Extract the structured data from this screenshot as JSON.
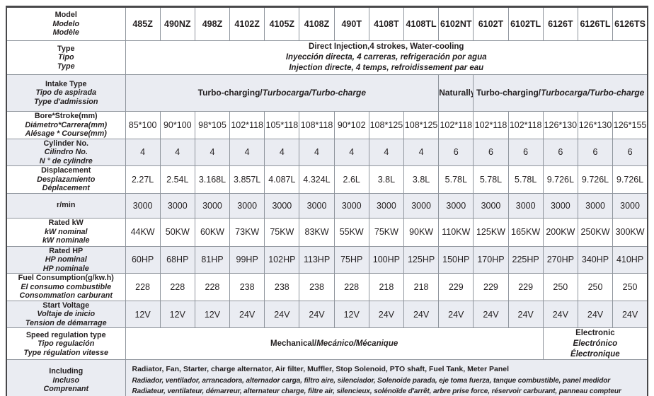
{
  "table": {
    "model_label": [
      "Model",
      "Modelo",
      "Modèle"
    ],
    "models": [
      "485Z",
      "490NZ",
      "498Z",
      "4102Z",
      "4105Z",
      "4108Z",
      "490T",
      "4108T",
      "4108TL",
      "6102NT",
      "6102T",
      "6102TL",
      "6126T",
      "6126TL",
      "6126TS"
    ],
    "rows": [
      {
        "name": "type",
        "shaded": false,
        "label": [
          "Type",
          "Tipo",
          "Type"
        ],
        "cells": [
          {
            "span": 15,
            "lines": [
              "Direct Injection,4 strokes, Water-cooling",
              "Inyección directa, 4 carreras, refrigeración por agua",
              "Injection directe, 4 temps, refroidissement par eau"
            ]
          }
        ]
      },
      {
        "name": "intake",
        "shaded": true,
        "label": [
          "Intake Type",
          "Tipo de aspirada",
          "Type d'admission"
        ],
        "cells": [
          {
            "span": 9,
            "lines": [
              "Turbo-charging/Turbocarga/Turbo-charge"
            ]
          },
          {
            "span": 1,
            "lines": [
              "Naturally"
            ]
          },
          {
            "span": 5,
            "lines": [
              "Turbo-charging/Turbocarga/Turbo-charge"
            ]
          }
        ]
      },
      {
        "name": "bore-stroke",
        "shaded": false,
        "label": [
          "Bore*Stroke(mm)",
          "Diámetro*Carrera(mm)",
          "Alésage * Course(mm)"
        ],
        "values": [
          "85*100",
          "90*100",
          "98*105",
          "102*118",
          "105*118",
          "108*118",
          "90*102",
          "108*125",
          "108*125",
          "102*118",
          "102*118",
          "102*118",
          "126*130",
          "126*130",
          "126*155"
        ]
      },
      {
        "name": "cylinder-no",
        "shaded": true,
        "label": [
          "Cylinder No.",
          "Cilindro No.",
          "N ° de cylindre"
        ],
        "values": [
          "4",
          "4",
          "4",
          "4",
          "4",
          "4",
          "4",
          "4",
          "4",
          "6",
          "6",
          "6",
          "6",
          "6",
          "6"
        ]
      },
      {
        "name": "displacement",
        "shaded": false,
        "label": [
          "Displacement",
          "Desplazamiento",
          "Déplacement"
        ],
        "values": [
          "2.27L",
          "2.54L",
          "3.168L",
          "3.857L",
          "4.087L",
          "4.324L",
          "2.6L",
          "3.8L",
          "3.8L",
          "5.78L",
          "5.78L",
          "5.78L",
          "9.726L",
          "9.726L",
          "9.726L"
        ]
      },
      {
        "name": "rpm",
        "shaded": true,
        "label": [
          "r/min"
        ],
        "values": [
          "3000",
          "3000",
          "3000",
          "3000",
          "3000",
          "3000",
          "3000",
          "3000",
          "3000",
          "3000",
          "3000",
          "3000",
          "3000",
          "3000",
          "3000"
        ]
      },
      {
        "name": "rated-kw",
        "shaded": false,
        "label": [
          "Rated kW",
          "kW nominal",
          "kW nominale"
        ],
        "values": [
          "44KW",
          "50KW",
          "60KW",
          "73KW",
          "75KW",
          "83KW",
          "55KW",
          "75KW",
          "90KW",
          "110KW",
          "125KW",
          "165KW",
          "200KW",
          "250KW",
          "300KW"
        ]
      },
      {
        "name": "rated-hp",
        "shaded": true,
        "label": [
          "Rated HP",
          "HP nominal",
          "HP nominale"
        ],
        "values": [
          "60HP",
          "68HP",
          "81HP",
          "99HP",
          "102HP",
          "113HP",
          "75HP",
          "100HP",
          "125HP",
          "150HP",
          "170HP",
          "225HP",
          "270HP",
          "340HP",
          "410HP"
        ]
      },
      {
        "name": "fuel-consumption",
        "shaded": false,
        "label": [
          "Fuel Consumption(g/kw.h)",
          "El consumo combustible",
          "Consommation carburant"
        ],
        "values": [
          "228",
          "228",
          "228",
          "238",
          "238",
          "238",
          "228",
          "218",
          "218",
          "229",
          "229",
          "229",
          "250",
          "250",
          "250"
        ]
      },
      {
        "name": "start-voltage",
        "shaded": true,
        "label": [
          "Start Voltage",
          "Voltaje de inicio",
          "Tension de démarrage"
        ],
        "values": [
          "12V",
          "12V",
          "12V",
          "24V",
          "24V",
          "24V",
          "12V",
          "24V",
          "24V",
          "24V",
          "24V",
          "24V",
          "24V",
          "24V",
          "24V"
        ]
      },
      {
        "name": "speed-regulation",
        "shaded": false,
        "label": [
          "Speed regulation type",
          "Tipo regulación",
          "Type régulation vitesse"
        ],
        "cells": [
          {
            "span": 12,
            "lines": [
              "Mechanical/Mecánico/Mécanique"
            ]
          },
          {
            "span": 3,
            "lines": [
              "Electronic",
              "Electrónico",
              "Électronique"
            ]
          }
        ]
      },
      {
        "name": "including",
        "shaded": true,
        "label": [
          "Including",
          "Incluso",
          "Comprenant"
        ],
        "cells": [
          {
            "span": 15,
            "lines": [
              "Radiator, Fan, Starter, charge alternator, Air filter, Muffler, Stop Solenoid, PTO shaft, Fuel Tank, Meter Panel",
              "Radiador, ventilador, arrancadora, alternador carga, filtro aire, silenciador, Solenoide parada, eje toma fuerza, tanque combustible, panel medidor",
              "Radiateur, ventilateur, démarreur, alternateur charge, filtre air, silencieux, solénoïde d'arrêt, arbre prise force, réservoir carburant, panneau compteur"
            ]
          }
        ]
      }
    ],
    "colors": {
      "shaded_row": "#eaecf2",
      "inner_border": "#8f959d",
      "outer_border": "#48484a",
      "text": "#231f20"
    }
  }
}
